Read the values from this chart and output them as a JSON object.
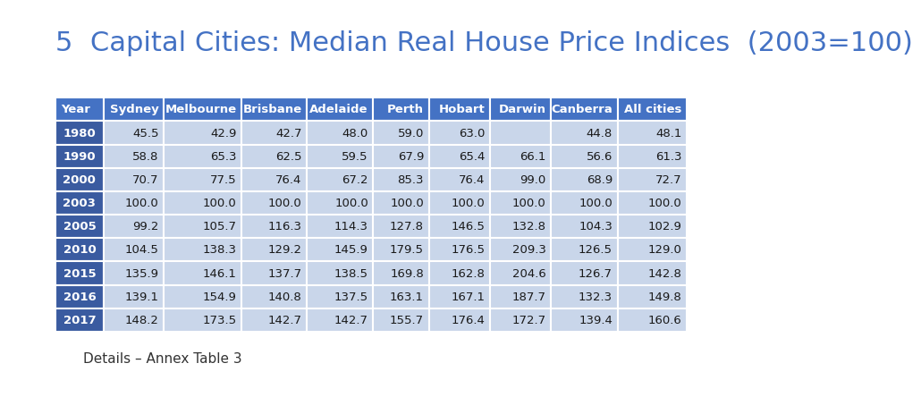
{
  "title": "5  Capital Cities: Median Real House Price Indices  (2003=100)",
  "title_color": "#4472C4",
  "title_fontsize": 22,
  "footnote": "Details – Annex Table 3",
  "columns": [
    "Year",
    "Sydney",
    "Melbourne",
    "Brisbane",
    "Adelaide",
    "Perth",
    "Hobart",
    "Darwin",
    "Canberra",
    "All cities"
  ],
  "rows": [
    [
      "1980",
      "45.5",
      "42.9",
      "42.7",
      "48.0",
      "59.0",
      "63.0",
      "",
      "44.8",
      "48.1"
    ],
    [
      "1990",
      "58.8",
      "65.3",
      "62.5",
      "59.5",
      "67.9",
      "65.4",
      "66.1",
      "56.6",
      "61.3"
    ],
    [
      "2000",
      "70.7",
      "77.5",
      "76.4",
      "67.2",
      "85.3",
      "76.4",
      "99.0",
      "68.9",
      "72.7"
    ],
    [
      "2003",
      "100.0",
      "100.0",
      "100.0",
      "100.0",
      "100.0",
      "100.0",
      "100.0",
      "100.0",
      "100.0"
    ],
    [
      "2005",
      "99.2",
      "105.7",
      "116.3",
      "114.3",
      "127.8",
      "146.5",
      "132.8",
      "104.3",
      "102.9"
    ],
    [
      "2010",
      "104.5",
      "138.3",
      "129.2",
      "145.9",
      "179.5",
      "176.5",
      "209.3",
      "126.5",
      "129.0"
    ],
    [
      "2015",
      "135.9",
      "146.1",
      "137.7",
      "138.5",
      "169.8",
      "162.8",
      "204.6",
      "126.7",
      "142.8"
    ],
    [
      "2016",
      "139.1",
      "154.9",
      "140.8",
      "137.5",
      "163.1",
      "167.1",
      "187.7",
      "132.3",
      "149.8"
    ],
    [
      "2017",
      "148.2",
      "173.5",
      "142.7",
      "142.7",
      "155.7",
      "176.4",
      "172.7",
      "139.4",
      "160.6"
    ]
  ],
  "header_bg": "#4472C4",
  "header_text_color": "#FFFFFF",
  "year_col_bg": "#3A5BA0",
  "year_col_text_color": "#FFFFFF",
  "data_row_bg": "#C9D6EA",
  "data_text_color": "#1A1A1A",
  "background_color": "#FFFFFF",
  "col_widths": [
    0.72,
    0.88,
    1.15,
    0.96,
    0.98,
    0.82,
    0.9,
    0.9,
    0.98,
    1.02
  ]
}
